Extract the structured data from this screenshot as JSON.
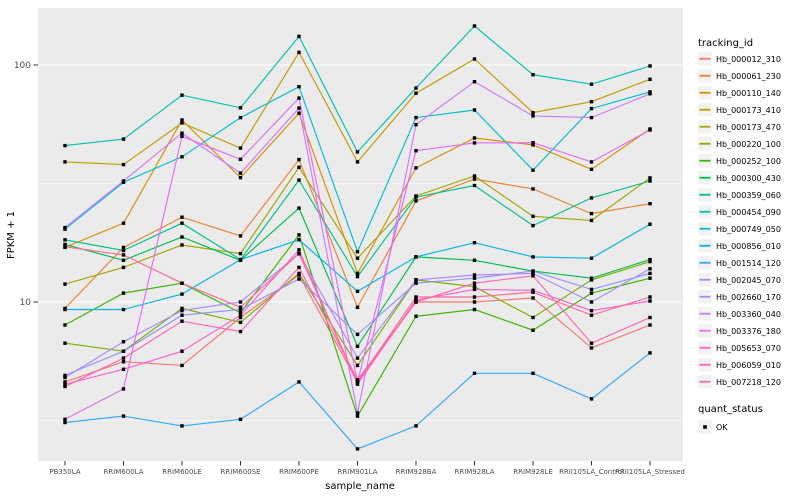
{
  "chart_data": {
    "type": "line",
    "title": "",
    "xlabel": "sample_name",
    "ylabel": "FPKM + 1",
    "y_scale": "log10",
    "y_major_ticks": [
      100,
      10
    ],
    "y_minor_ticks": [
      31.623,
      3.1623
    ],
    "ylim": [
      2.2,
      175
    ],
    "grid": true,
    "panel_color": "#EBEBEB",
    "grid_color": "#FFFFFF",
    "marker": {
      "shape": "square",
      "color": "#000000",
      "meaning": "quant_status OK"
    },
    "categories": [
      "PB350LA",
      "RRIM600LA",
      "RRIM600LE",
      "RRIM600SE",
      "RRIM600PE",
      "RRIM901LA",
      "RRIM928BA",
      "RRIM928LA",
      "RRIM928LE",
      "RRII105LA_Control",
      "RRII105LA_Stressed"
    ],
    "series": [
      {
        "name": "Hb_000012_310",
        "color": "#F8766D",
        "values": [
          4.6,
          5.6,
          5.4,
          8.6,
          13.0,
          4.6,
          10.0,
          10.0,
          10.4,
          6.4,
          8.0
        ]
      },
      {
        "name": "Hb_000061_230",
        "color": "#EA8331",
        "values": [
          9.4,
          17.0,
          22.8,
          19.0,
          39.9,
          9.5,
          26.7,
          33.0,
          30.0,
          23.6,
          26.0
        ]
      },
      {
        "name": "Hb_000110_140",
        "color": "#D89000",
        "values": [
          17.0,
          21.5,
          58.6,
          33.5,
          62.6,
          13.2,
          36.8,
          49.2,
          46.0,
          36.3,
          53.7
        ]
      },
      {
        "name": "Hb_000173_410",
        "color": "#C09B00",
        "values": [
          39.0,
          38.0,
          57.0,
          44.6,
          113.0,
          39.0,
          76.0,
          106.0,
          63.0,
          70.0,
          87.0
        ]
      },
      {
        "name": "Hb_000173_470",
        "color": "#A3A500",
        "values": [
          11.9,
          14.0,
          17.4,
          16.0,
          37.0,
          15.3,
          28.0,
          34.0,
          23.0,
          22.1,
          33.4
        ]
      },
      {
        "name": "Hb_000220_100",
        "color": "#7CAE00",
        "values": [
          6.7,
          6.2,
          9.4,
          8.2,
          13.2,
          5.4,
          12.4,
          11.6,
          8.6,
          12.4,
          14.8
        ]
      },
      {
        "name": "Hb_000252_100",
        "color": "#39B600",
        "values": [
          8.0,
          10.9,
          12.0,
          9.0,
          19.2,
          3.3,
          8.7,
          9.3,
          7.6,
          10.9,
          12.6
        ]
      },
      {
        "name": "Hb_000300_430",
        "color": "#00BB4E",
        "values": [
          17.5,
          15.0,
          18.8,
          15.0,
          24.9,
          6.5,
          15.5,
          15.0,
          13.5,
          12.6,
          15.1
        ]
      },
      {
        "name": "Hb_000359_060",
        "color": "#00C08B",
        "values": [
          18.3,
          16.5,
          21.5,
          15.1,
          32.7,
          12.8,
          27.7,
          31.0,
          21.0,
          27.5,
          32.4
        ]
      },
      {
        "name": "Hb_000454_090",
        "color": "#00C0B4",
        "values": [
          45.7,
          48.7,
          74.6,
          66.0,
          132.0,
          43.0,
          80.0,
          146.0,
          91.0,
          83.0,
          99.0
        ]
      },
      {
        "name": "Hb_000749_050",
        "color": "#00BDD4",
        "values": [
          20.3,
          32.0,
          41.0,
          60.0,
          81.0,
          16.3,
          60.0,
          64.6,
          36.0,
          65.5,
          77.0
        ]
      },
      {
        "name": "Hb_000856_010",
        "color": "#00B5EC",
        "values": [
          9.3,
          9.3,
          10.8,
          15.1,
          18.3,
          11.1,
          15.5,
          17.8,
          15.5,
          15.3,
          21.3
        ]
      },
      {
        "name": "Hb_001514_120",
        "color": "#2FA8FF",
        "values": [
          3.1,
          3.3,
          3.0,
          3.2,
          4.6,
          2.4,
          3.0,
          5.0,
          5.0,
          3.9,
          6.1
        ]
      },
      {
        "name": "Hb_002045_070",
        "color": "#9590FF",
        "values": [
          4.9,
          6.2,
          8.8,
          9.3,
          12.5,
          7.3,
          12.0,
          12.6,
          13.5,
          11.3,
          13.2
        ]
      },
      {
        "name": "Hb_002660_170",
        "color": "#AE87FF",
        "values": [
          4.8,
          6.8,
          9.2,
          10.0,
          16.0,
          5.8,
          12.4,
          13.0,
          13.2,
          10.0,
          13.8
        ]
      },
      {
        "name": "Hb_003360_040",
        "color": "#D277FF",
        "values": [
          20.6,
          32.4,
          51.6,
          35.0,
          65.8,
          3.4,
          56.0,
          85.0,
          61.0,
          60.0,
          75.6
        ]
      },
      {
        "name": "Hb_003376_180",
        "color": "#E76BF3",
        "values": [
          3.2,
          4.3,
          50.0,
          40.0,
          72.5,
          4.6,
          43.5,
          46.9,
          47.0,
          39.0,
          53.2
        ]
      },
      {
        "name": "Hb_005653_070",
        "color": "#FB61D7",
        "values": [
          4.5,
          5.2,
          6.2,
          8.8,
          16.6,
          4.5,
          10.2,
          11.3,
          11.2,
          9.2,
          10.1
        ]
      },
      {
        "name": "Hb_006059_010",
        "color": "#FF63B6",
        "values": [
          4.4,
          5.8,
          8.3,
          7.5,
          14.0,
          4.7,
          10.0,
          12.0,
          12.9,
          6.7,
          8.6
        ]
      },
      {
        "name": "Hb_007218_120",
        "color": "#FF6A98",
        "values": [
          17.1,
          15.8,
          12.0,
          9.5,
          16.0,
          4.6,
          10.5,
          10.5,
          11.0,
          8.8,
          10.5
        ]
      }
    ],
    "legend_position": "right"
  },
  "legend": {
    "tracking_title": "tracking_id",
    "quant_title": "quant_status",
    "quant_items": [
      {
        "label": "OK",
        "marker": "black-square"
      }
    ],
    "key_background": "#F2F2F2"
  }
}
